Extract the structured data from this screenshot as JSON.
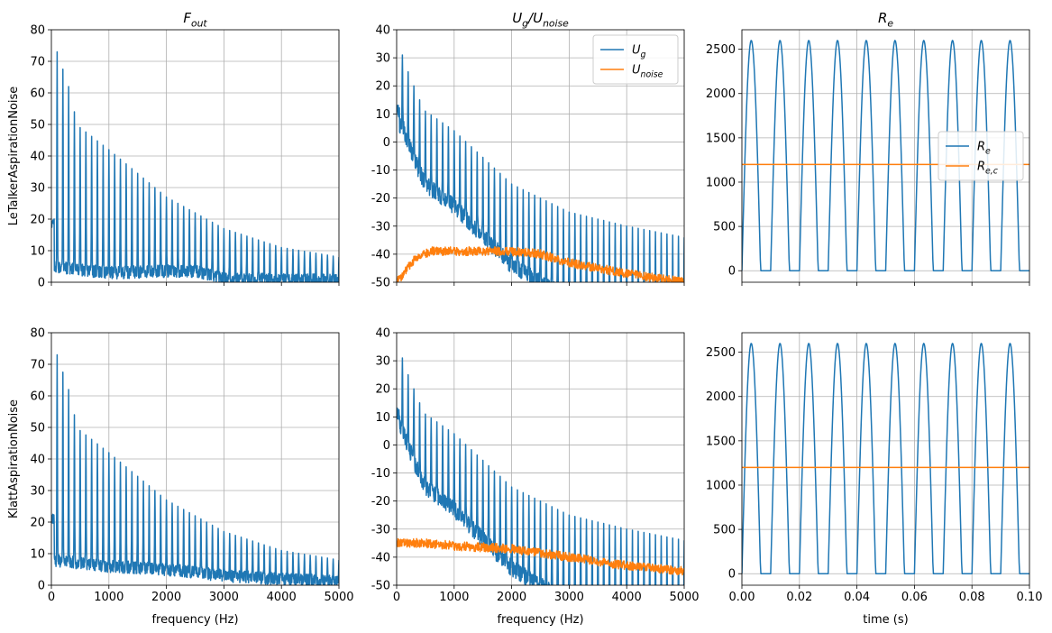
{
  "chart_data": [
    {
      "type": "line",
      "title": "F_out",
      "title_main": "F",
      "title_sub": "out",
      "ylabel": "LeTalkerAspirationNoise",
      "xlabel": "",
      "xlim": [
        0,
        5000
      ],
      "ylim": [
        0,
        80
      ],
      "xticks": [
        0,
        1000,
        2000,
        3000,
        4000,
        5000
      ],
      "yticks": [
        0,
        10,
        20,
        30,
        40,
        50,
        60,
        70,
        80
      ],
      "xticks_labeled": false,
      "grid": true,
      "spectrum": {
        "f0": 100,
        "peak_db": 73,
        "peak_freq": 100,
        "decay_db_per_khz": 13.5,
        "floor": 72,
        "floor_low": 6,
        "floor_bump": 4
      },
      "series": [
        {
          "name": "",
          "color": "#1f77b4",
          "peaks": [
            [
              100,
              73
            ],
            [
              200,
              67.5
            ],
            [
              300,
              62
            ],
            [
              400,
              54
            ],
            [
              500,
              49
            ],
            [
              1000,
              42
            ],
            [
              2000,
              27
            ],
            [
              3000,
              17
            ],
            [
              4000,
              11
            ],
            [
              5000,
              8
            ]
          ],
          "noise_floor": [
            [
              0,
              5
            ],
            [
              1000,
              3
            ],
            [
              2000,
              3.5
            ],
            [
              2500,
              3.5
            ],
            [
              3000,
              1
            ],
            [
              5000,
              0.5
            ]
          ]
        }
      ]
    },
    {
      "type": "line",
      "title": "U_g/U_noise",
      "title_main": "U",
      "title_sub": "g",
      "title_main2": "/U",
      "title_sub2": "noise",
      "ylabel": "",
      "xlabel": "",
      "xlim": [
        0,
        5000
      ],
      "ylim": [
        -50,
        40
      ],
      "xticks": [
        0,
        1000,
        2000,
        3000,
        4000,
        5000
      ],
      "yticks": [
        -50,
        -40,
        -30,
        -20,
        -10,
        0,
        10,
        20,
        30,
        40
      ],
      "xticks_labeled": false,
      "grid": true,
      "legend": "top-right",
      "series": [
        {
          "name": "U_g",
          "legend_main": "U",
          "legend_sub": "g",
          "color": "#1f77b4",
          "peaks": [
            [
              100,
              31
            ],
            [
              200,
              25
            ],
            [
              300,
              20
            ],
            [
              400,
              15
            ],
            [
              500,
              11
            ],
            [
              1000,
              4
            ],
            [
              2000,
              -15
            ],
            [
              3000,
              -25
            ],
            [
              4000,
              -30
            ],
            [
              5000,
              -34
            ]
          ]
        },
        {
          "name": "U_noise",
          "legend_main": "U",
          "legend_sub": "noise",
          "color": "#ff7f0e",
          "curve": [
            [
              0,
              -50
            ],
            [
              300,
              -42
            ],
            [
              600,
              -39
            ],
            [
              1000,
              -39
            ],
            [
              2000,
              -39
            ],
            [
              2500,
              -40
            ],
            [
              3000,
              -43
            ],
            [
              4000,
              -47
            ],
            [
              5000,
              -50
            ]
          ]
        }
      ]
    },
    {
      "type": "line",
      "title": "R_e",
      "title_main": "R",
      "title_sub": "e",
      "ylabel": "",
      "xlabel": "",
      "xlim": [
        0,
        0.1
      ],
      "ylim": [
        -130,
        2720
      ],
      "xticks": [
        0,
        0.02,
        0.04,
        0.06,
        0.08,
        0.1
      ],
      "yticks": [
        0,
        500,
        1000,
        1500,
        2000,
        2500
      ],
      "xticks_labeled": false,
      "grid": true,
      "legend": "center-right",
      "series": [
        {
          "name": "R_e",
          "legend_main": "R",
          "legend_sub": "e",
          "color": "#1f77b4",
          "pulse": {
            "period": 0.01,
            "peak": 2600,
            "open_fraction": 0.65
          }
        },
        {
          "name": "R_e,c",
          "legend_main": "R",
          "legend_sub": "e,c",
          "color": "#ff7f0e",
          "constant": 1200
        }
      ]
    },
    {
      "type": "line",
      "title": "",
      "ylabel": "KlattAspirationNoise",
      "xlabel": "frequency (Hz)",
      "xlim": [
        0,
        5000
      ],
      "ylim": [
        0,
        80
      ],
      "xticks": [
        0,
        1000,
        2000,
        3000,
        4000,
        5000
      ],
      "yticks": [
        0,
        10,
        20,
        30,
        40,
        50,
        60,
        70,
        80
      ],
      "xticks_labeled": true,
      "grid": true,
      "series": [
        {
          "name": "",
          "color": "#1f77b4",
          "peaks": [
            [
              100,
              73
            ],
            [
              200,
              67.5
            ],
            [
              300,
              62
            ],
            [
              400,
              54
            ],
            [
              500,
              49
            ],
            [
              1000,
              42
            ],
            [
              2000,
              27
            ],
            [
              3000,
              17
            ],
            [
              4000,
              11
            ],
            [
              5000,
              8
            ]
          ],
          "noise_floor": [
            [
              0,
              8
            ],
            [
              1000,
              6
            ],
            [
              2000,
              5
            ],
            [
              3000,
              3
            ],
            [
              4000,
              2
            ],
            [
              5000,
              1
            ]
          ]
        }
      ]
    },
    {
      "type": "line",
      "title": "",
      "ylabel": "",
      "xlabel": "frequency (Hz)",
      "xlim": [
        0,
        5000
      ],
      "ylim": [
        -50,
        40
      ],
      "xticks": [
        0,
        1000,
        2000,
        3000,
        4000,
        5000
      ],
      "yticks": [
        -50,
        -40,
        -30,
        -20,
        -10,
        0,
        10,
        20,
        30,
        40
      ],
      "xticks_labeled": true,
      "grid": true,
      "series": [
        {
          "name": "U_g",
          "color": "#1f77b4",
          "peaks": [
            [
              100,
              31
            ],
            [
              200,
              25
            ],
            [
              300,
              20
            ],
            [
              400,
              15
            ],
            [
              500,
              11
            ],
            [
              1000,
              4
            ],
            [
              2000,
              -15
            ],
            [
              3000,
              -25
            ],
            [
              4000,
              -30
            ],
            [
              5000,
              -34
            ]
          ]
        },
        {
          "name": "U_noise",
          "color": "#ff7f0e",
          "curve": [
            [
              0,
              -35
            ],
            [
              500,
              -35
            ],
            [
              1000,
              -36
            ],
            [
              2000,
              -37
            ],
            [
              3000,
              -40
            ],
            [
              4000,
              -43
            ],
            [
              5000,
              -45
            ]
          ]
        }
      ]
    },
    {
      "type": "line",
      "title": "",
      "ylabel": "",
      "xlabel": "time (s)",
      "xlim": [
        0,
        0.1
      ],
      "ylim": [
        -130,
        2720
      ],
      "xticks": [
        0,
        0.02,
        0.04,
        0.06,
        0.08,
        0.1
      ],
      "xtick_labels": [
        "0.00",
        "0.02",
        "0.04",
        "0.06",
        "0.08",
        "0.10"
      ],
      "yticks": [
        0,
        500,
        1000,
        1500,
        2000,
        2500
      ],
      "xticks_labeled": true,
      "grid": true,
      "series": [
        {
          "name": "R_e",
          "color": "#1f77b4",
          "pulse": {
            "period": 0.01,
            "peak": 2600,
            "open_fraction": 0.65
          }
        },
        {
          "name": "R_e,c",
          "color": "#ff7f0e",
          "constant": 1200
        }
      ]
    }
  ]
}
